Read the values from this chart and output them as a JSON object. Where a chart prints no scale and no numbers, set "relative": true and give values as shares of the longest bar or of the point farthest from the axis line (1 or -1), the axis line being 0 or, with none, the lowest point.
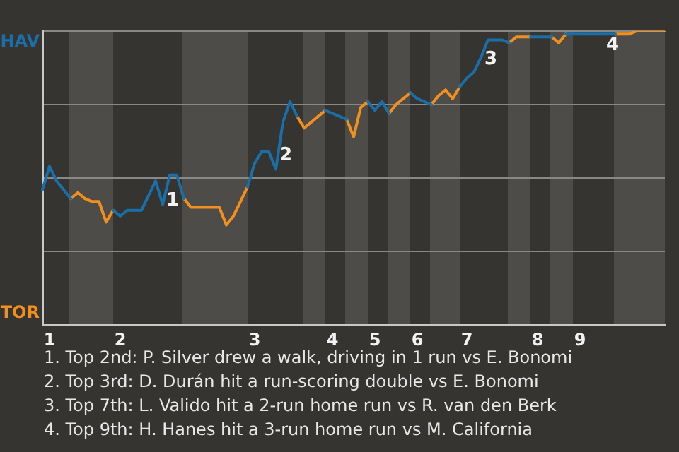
{
  "chart_data": {
    "type": "line",
    "relative": true,
    "categories": [
      null,
      "1",
      null,
      null,
      null,
      null,
      null,
      null,
      null,
      null,
      null,
      "2",
      null,
      null,
      null,
      null,
      null,
      null,
      null,
      null,
      null,
      null,
      null,
      null,
      null,
      null,
      null,
      null,
      null,
      null,
      "3",
      null,
      null,
      null,
      null,
      null,
      null,
      null,
      null,
      null,
      null,
      "4",
      null,
      null,
      null,
      null,
      null,
      "5",
      null,
      null,
      null,
      null,
      null,
      "6",
      null,
      null,
      null,
      null,
      null,
      null,
      "7",
      null,
      null,
      null,
      null,
      null,
      null,
      null,
      null,
      null,
      "8",
      null,
      null,
      null,
      null,
      null,
      "9",
      null,
      null,
      null,
      null,
      null,
      null,
      null,
      null,
      null,
      null,
      null,
      null
    ],
    "series": [
      {
        "name": "HAV",
        "color": "#1a6fa8",
        "values": [
          0.46,
          0.54,
          0.49,
          0.46,
          0.43,
          null,
          null,
          null,
          null,
          null,
          0.39,
          0.37,
          0.39,
          0.39,
          0.39,
          0.44,
          0.49,
          0.41,
          0.51,
          0.51,
          0.43,
          null,
          null,
          null,
          null,
          null,
          null,
          null,
          null,
          0.47,
          0.55,
          0.59,
          0.59,
          0.53,
          0.69,
          0.76,
          0.71,
          null,
          null,
          null,
          0.73,
          0.72,
          0.71,
          0.7,
          null,
          null,
          0.76,
          0.73,
          0.76,
          0.72,
          null,
          null,
          0.79,
          0.77,
          0.76,
          0.75,
          null,
          null,
          null,
          0.81,
          0.84,
          0.86,
          0.91,
          0.97,
          0.97,
          0.97,
          0.96,
          null,
          null,
          0.98,
          0.98,
          0.98,
          0.98,
          null,
          0.99,
          0.99,
          0.99,
          0.99,
          0.99,
          0.99,
          0.99,
          0.99,
          null,
          null,
          null,
          null,
          null,
          null,
          null
        ]
      },
      {
        "name": "TOR",
        "color": "#f0901e",
        "values": [
          null,
          null,
          null,
          null,
          0.43,
          0.45,
          0.43,
          0.42,
          0.42,
          0.35,
          0.39,
          null,
          null,
          null,
          null,
          null,
          null,
          null,
          null,
          null,
          0.43,
          0.4,
          0.4,
          0.4,
          0.4,
          0.4,
          0.34,
          0.37,
          0.42,
          0.47,
          null,
          null,
          null,
          null,
          null,
          null,
          0.71,
          0.67,
          0.69,
          0.71,
          0.73,
          null,
          null,
          0.7,
          0.64,
          0.74,
          0.76,
          null,
          null,
          0.72,
          0.75,
          0.77,
          0.79,
          null,
          null,
          0.75,
          0.78,
          0.8,
          0.77,
          0.81,
          null,
          null,
          null,
          null,
          null,
          null,
          0.96,
          0.98,
          0.98,
          0.98,
          null,
          null,
          0.98,
          0.96,
          0.99,
          null,
          null,
          null,
          null,
          null,
          null,
          0.99,
          0.99,
          0.99,
          1,
          1,
          1,
          1,
          1
        ]
      }
    ],
    "grid": "y",
    "legend": false,
    "annotations": [
      "1",
      "2",
      "3",
      "4",
      "1. Top 2nd: P. Silver drew a walk, driving in 1 run vs E. Bonomi",
      "2. Top 3rd: D. Durán hit a run-scoring double vs E. Bonomi",
      "3. Top 7th: L. Valido hit a 2-run home run vs R. van den Berk",
      "4. Top 9th: H. Hanes hit a 3-run home run vs M. California"
    ]
  }
}
